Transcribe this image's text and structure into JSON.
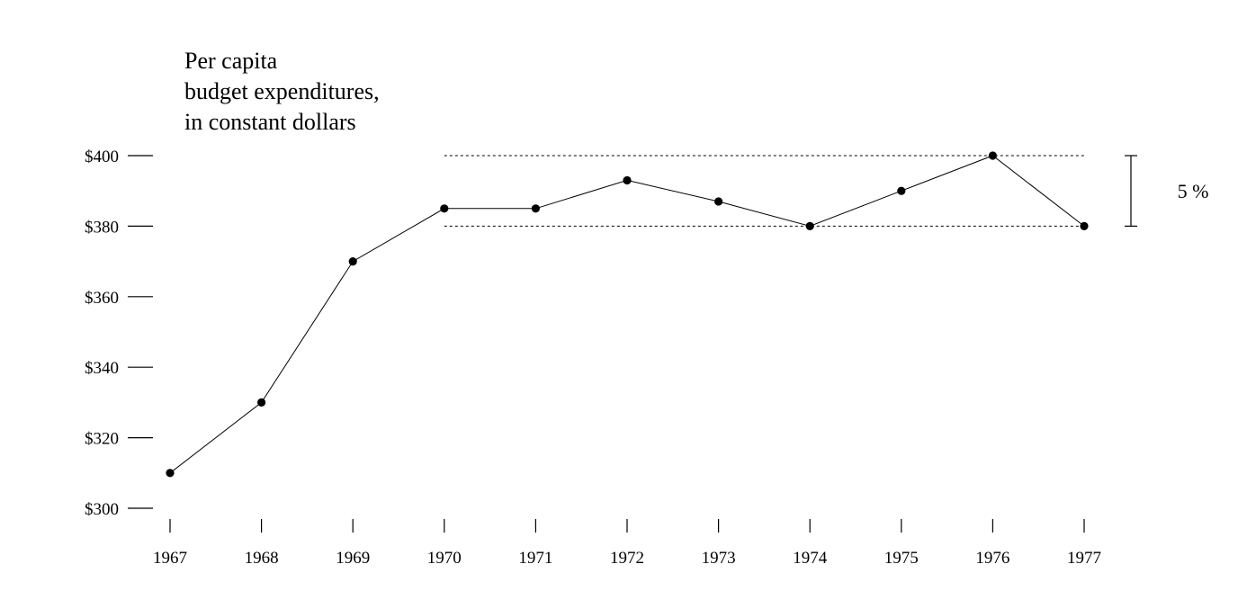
{
  "colors": {
    "background": "#ffffff",
    "ink": "#000000"
  },
  "chart_data": {
    "type": "line",
    "title_lines": [
      "Per capita",
      "budget expenditures,",
      "in constant dollars"
    ],
    "xlabel": "",
    "ylabel": "",
    "x": [
      1967,
      1968,
      1969,
      1970,
      1971,
      1972,
      1973,
      1974,
      1975,
      1976,
      1977
    ],
    "x_tick_labels": [
      "1967",
      "1968",
      "1969",
      "1970",
      "1971",
      "1972",
      "1973",
      "1974",
      "1975",
      "1976",
      "1977"
    ],
    "series": [
      {
        "values": [
          310,
          330,
          370,
          385,
          385,
          393,
          387,
          380,
          390,
          400,
          380
        ]
      }
    ],
    "ylim": [
      300,
      400
    ],
    "y_ticks": [
      300,
      320,
      340,
      360,
      380,
      400
    ],
    "y_tick_labels": [
      "$300",
      "$320",
      "$340",
      "$360",
      "$380",
      "$400"
    ],
    "reference_lines": [
      {
        "value": 400,
        "from_x": 1970,
        "to_x": 1977,
        "style": "dotted"
      },
      {
        "value": 380,
        "from_x": 1970,
        "to_x": 1977,
        "style": "dotted"
      }
    ],
    "range_bracket": {
      "low": 380,
      "high": 400,
      "label": "5 %"
    },
    "grid": false,
    "legend": "none"
  }
}
